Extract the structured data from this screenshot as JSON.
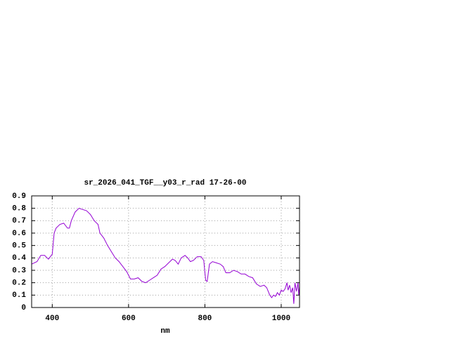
{
  "chart_data": {
    "type": "line",
    "title": "sr_2026_041_TGF__y03_r_rad 17-26-00",
    "x_label": "nm",
    "x": [
      346,
      360,
      370,
      380,
      390,
      400,
      405,
      410,
      420,
      430,
      440,
      445,
      450,
      460,
      470,
      480,
      490,
      500,
      510,
      520,
      525,
      535,
      545,
      555,
      565,
      575,
      585,
      595,
      605,
      615,
      625,
      635,
      645,
      655,
      665,
      675,
      685,
      695,
      705,
      715,
      722,
      730,
      738,
      748,
      755,
      762,
      770,
      780,
      790,
      797,
      802,
      806,
      812,
      820,
      830,
      840,
      848,
      855,
      865,
      875,
      885,
      895,
      905,
      915,
      925,
      935,
      945,
      955,
      962,
      970,
      975,
      980,
      985,
      990,
      995,
      1000,
      1005,
      1010,
      1015,
      1018,
      1022,
      1026,
      1030,
      1033,
      1036,
      1040,
      1044,
      1046,
      1048
    ],
    "values": [
      0.35,
      0.37,
      0.42,
      0.42,
      0.39,
      0.43,
      0.6,
      0.64,
      0.67,
      0.68,
      0.64,
      0.64,
      0.7,
      0.77,
      0.8,
      0.79,
      0.78,
      0.75,
      0.7,
      0.67,
      0.6,
      0.56,
      0.5,
      0.45,
      0.4,
      0.37,
      0.33,
      0.29,
      0.23,
      0.23,
      0.24,
      0.21,
      0.2,
      0.22,
      0.24,
      0.26,
      0.31,
      0.33,
      0.36,
      0.39,
      0.38,
      0.35,
      0.4,
      0.42,
      0.4,
      0.37,
      0.38,
      0.41,
      0.41,
      0.38,
      0.22,
      0.21,
      0.35,
      0.37,
      0.36,
      0.35,
      0.33,
      0.28,
      0.28,
      0.3,
      0.29,
      0.27,
      0.27,
      0.25,
      0.24,
      0.19,
      0.17,
      0.18,
      0.16,
      0.1,
      0.08,
      0.1,
      0.09,
      0.12,
      0.1,
      0.14,
      0.13,
      0.15,
      0.2,
      0.14,
      0.18,
      0.12,
      0.16,
      0.03,
      0.2,
      0.13,
      0.2,
      0.1,
      0.17
    ],
    "color": "#9400d3",
    "xlim": [
      346,
      1048
    ],
    "xticks": [
      400,
      600,
      800,
      1000
    ],
    "ylim": [
      0,
      0.9
    ],
    "yticks": [
      0,
      0.1,
      0.2,
      0.3,
      0.4,
      0.5,
      0.6,
      0.7,
      0.8,
      0.9
    ],
    "grid": true
  }
}
